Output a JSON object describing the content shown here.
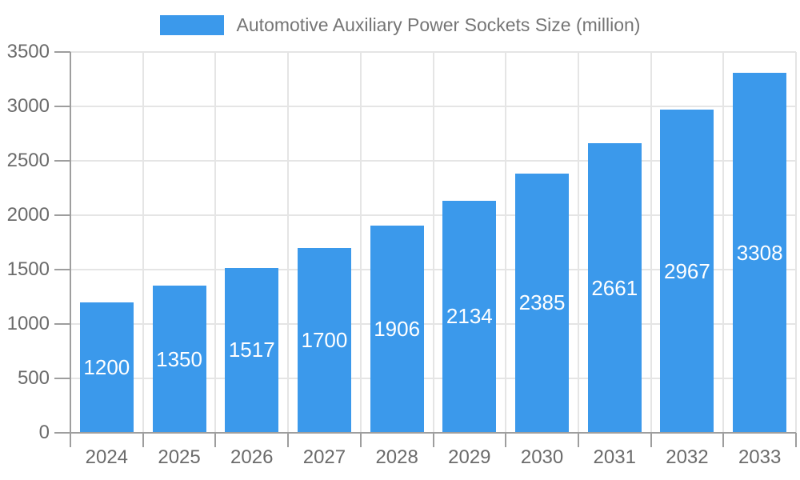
{
  "chart_data": {
    "type": "bar",
    "title": "Automotive Auxiliary Power Sockets Size (million)",
    "legend_position": "top",
    "grid": true,
    "categories": [
      "2024",
      "2025",
      "2026",
      "2027",
      "2028",
      "2029",
      "2030",
      "2031",
      "2032",
      "2033"
    ],
    "series": [
      {
        "name": "Automotive Auxiliary Power Sockets Size (million)",
        "values": [
          1200,
          1350,
          1517,
          1700,
          1906,
          2134,
          2385,
          2661,
          2967,
          3308
        ]
      }
    ],
    "xlabel": "",
    "ylabel": "",
    "ylim": [
      0,
      3500
    ],
    "yticks": [
      0,
      500,
      1000,
      1500,
      2000,
      2500,
      3000,
      3500
    ],
    "colors": {
      "bar": "#3b99eb",
      "value_label": "#ffffff",
      "axis_text": "#6b6b6b",
      "legend_text": "#757575",
      "gridline": "#e5e5e5",
      "axis_line": "#9e9e9e"
    }
  }
}
